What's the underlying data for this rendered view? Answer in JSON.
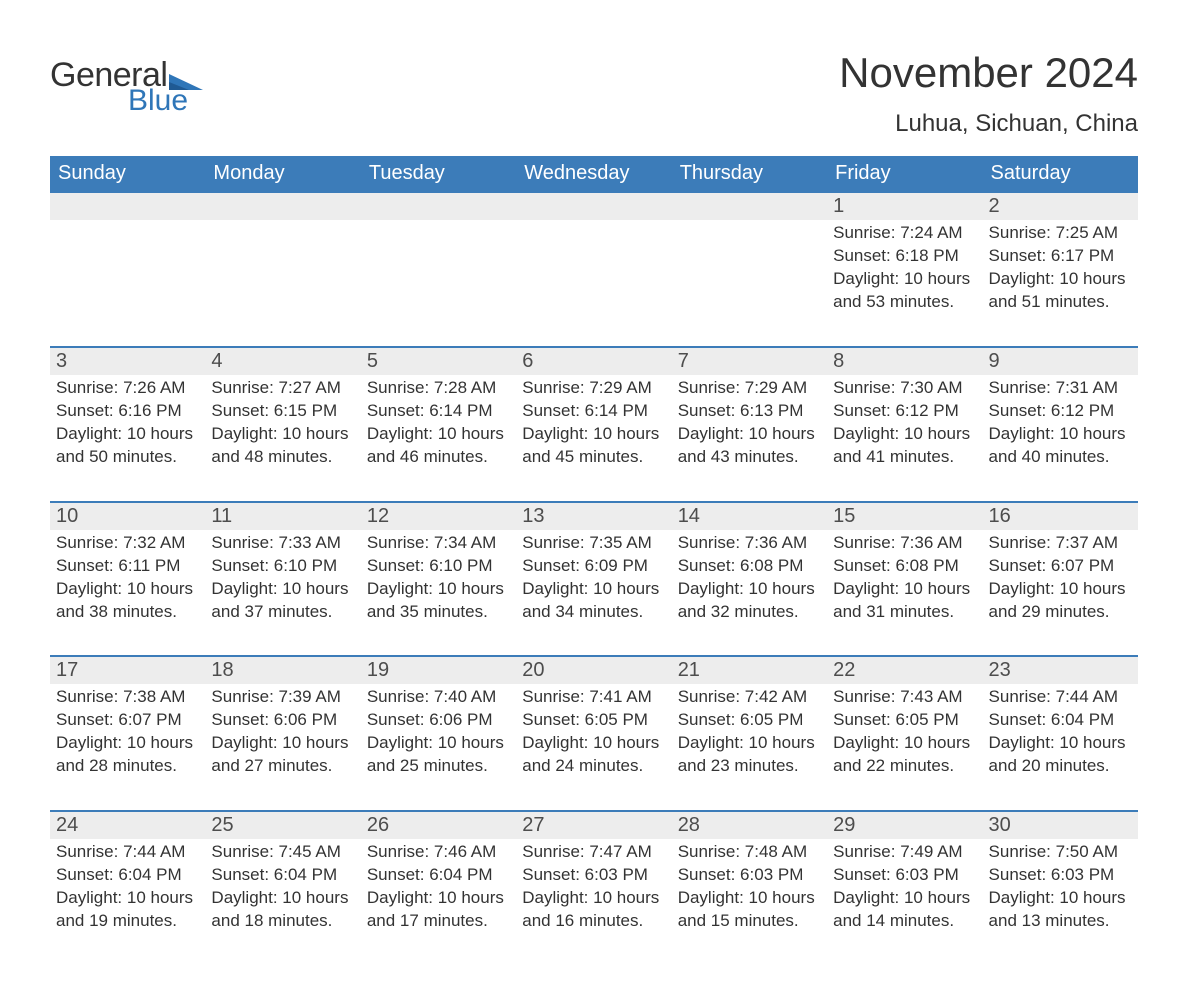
{
  "logo": {
    "general": "General",
    "blue": "Blue"
  },
  "title": "November 2024",
  "location": "Luhua, Sichuan, China",
  "day_names": [
    "Sunday",
    "Monday",
    "Tuesday",
    "Wednesday",
    "Thursday",
    "Friday",
    "Saturday"
  ],
  "colors": {
    "brand_blue": "#3c7cb9",
    "gray_band": "#ededed",
    "text": "#333333",
    "white": "#ffffff"
  },
  "fonts": {
    "title_size_pt": 32,
    "location_size_pt": 18,
    "header_size_pt": 15,
    "daynum_size_pt": 15,
    "body_size_pt": 13
  },
  "weeks": [
    [
      null,
      null,
      null,
      null,
      null,
      {
        "n": "1",
        "sunrise": "Sunrise: 7:24 AM",
        "sunset": "Sunset: 6:18 PM",
        "daylight": "Daylight: 10 hours and 53 minutes."
      },
      {
        "n": "2",
        "sunrise": "Sunrise: 7:25 AM",
        "sunset": "Sunset: 6:17 PM",
        "daylight": "Daylight: 10 hours and 51 minutes."
      }
    ],
    [
      {
        "n": "3",
        "sunrise": "Sunrise: 7:26 AM",
        "sunset": "Sunset: 6:16 PM",
        "daylight": "Daylight: 10 hours and 50 minutes."
      },
      {
        "n": "4",
        "sunrise": "Sunrise: 7:27 AM",
        "sunset": "Sunset: 6:15 PM",
        "daylight": "Daylight: 10 hours and 48 minutes."
      },
      {
        "n": "5",
        "sunrise": "Sunrise: 7:28 AM",
        "sunset": "Sunset: 6:14 PM",
        "daylight": "Daylight: 10 hours and 46 minutes."
      },
      {
        "n": "6",
        "sunrise": "Sunrise: 7:29 AM",
        "sunset": "Sunset: 6:14 PM",
        "daylight": "Daylight: 10 hours and 45 minutes."
      },
      {
        "n": "7",
        "sunrise": "Sunrise: 7:29 AM",
        "sunset": "Sunset: 6:13 PM",
        "daylight": "Daylight: 10 hours and 43 minutes."
      },
      {
        "n": "8",
        "sunrise": "Sunrise: 7:30 AM",
        "sunset": "Sunset: 6:12 PM",
        "daylight": "Daylight: 10 hours and 41 minutes."
      },
      {
        "n": "9",
        "sunrise": "Sunrise: 7:31 AM",
        "sunset": "Sunset: 6:12 PM",
        "daylight": "Daylight: 10 hours and 40 minutes."
      }
    ],
    [
      {
        "n": "10",
        "sunrise": "Sunrise: 7:32 AM",
        "sunset": "Sunset: 6:11 PM",
        "daylight": "Daylight: 10 hours and 38 minutes."
      },
      {
        "n": "11",
        "sunrise": "Sunrise: 7:33 AM",
        "sunset": "Sunset: 6:10 PM",
        "daylight": "Daylight: 10 hours and 37 minutes."
      },
      {
        "n": "12",
        "sunrise": "Sunrise: 7:34 AM",
        "sunset": "Sunset: 6:10 PM",
        "daylight": "Daylight: 10 hours and 35 minutes."
      },
      {
        "n": "13",
        "sunrise": "Sunrise: 7:35 AM",
        "sunset": "Sunset: 6:09 PM",
        "daylight": "Daylight: 10 hours and 34 minutes."
      },
      {
        "n": "14",
        "sunrise": "Sunrise: 7:36 AM",
        "sunset": "Sunset: 6:08 PM",
        "daylight": "Daylight: 10 hours and 32 minutes."
      },
      {
        "n": "15",
        "sunrise": "Sunrise: 7:36 AM",
        "sunset": "Sunset: 6:08 PM",
        "daylight": "Daylight: 10 hours and 31 minutes."
      },
      {
        "n": "16",
        "sunrise": "Sunrise: 7:37 AM",
        "sunset": "Sunset: 6:07 PM",
        "daylight": "Daylight: 10 hours and 29 minutes."
      }
    ],
    [
      {
        "n": "17",
        "sunrise": "Sunrise: 7:38 AM",
        "sunset": "Sunset: 6:07 PM",
        "daylight": "Daylight: 10 hours and 28 minutes."
      },
      {
        "n": "18",
        "sunrise": "Sunrise: 7:39 AM",
        "sunset": "Sunset: 6:06 PM",
        "daylight": "Daylight: 10 hours and 27 minutes."
      },
      {
        "n": "19",
        "sunrise": "Sunrise: 7:40 AM",
        "sunset": "Sunset: 6:06 PM",
        "daylight": "Daylight: 10 hours and 25 minutes."
      },
      {
        "n": "20",
        "sunrise": "Sunrise: 7:41 AM",
        "sunset": "Sunset: 6:05 PM",
        "daylight": "Daylight: 10 hours and 24 minutes."
      },
      {
        "n": "21",
        "sunrise": "Sunrise: 7:42 AM",
        "sunset": "Sunset: 6:05 PM",
        "daylight": "Daylight: 10 hours and 23 minutes."
      },
      {
        "n": "22",
        "sunrise": "Sunrise: 7:43 AM",
        "sunset": "Sunset: 6:05 PM",
        "daylight": "Daylight: 10 hours and 22 minutes."
      },
      {
        "n": "23",
        "sunrise": "Sunrise: 7:44 AM",
        "sunset": "Sunset: 6:04 PM",
        "daylight": "Daylight: 10 hours and 20 minutes."
      }
    ],
    [
      {
        "n": "24",
        "sunrise": "Sunrise: 7:44 AM",
        "sunset": "Sunset: 6:04 PM",
        "daylight": "Daylight: 10 hours and 19 minutes."
      },
      {
        "n": "25",
        "sunrise": "Sunrise: 7:45 AM",
        "sunset": "Sunset: 6:04 PM",
        "daylight": "Daylight: 10 hours and 18 minutes."
      },
      {
        "n": "26",
        "sunrise": "Sunrise: 7:46 AM",
        "sunset": "Sunset: 6:04 PM",
        "daylight": "Daylight: 10 hours and 17 minutes."
      },
      {
        "n": "27",
        "sunrise": "Sunrise: 7:47 AM",
        "sunset": "Sunset: 6:03 PM",
        "daylight": "Daylight: 10 hours and 16 minutes."
      },
      {
        "n": "28",
        "sunrise": "Sunrise: 7:48 AM",
        "sunset": "Sunset: 6:03 PM",
        "daylight": "Daylight: 10 hours and 15 minutes."
      },
      {
        "n": "29",
        "sunrise": "Sunrise: 7:49 AM",
        "sunset": "Sunset: 6:03 PM",
        "daylight": "Daylight: 10 hours and 14 minutes."
      },
      {
        "n": "30",
        "sunrise": "Sunrise: 7:50 AM",
        "sunset": "Sunset: 6:03 PM",
        "daylight": "Daylight: 10 hours and 13 minutes."
      }
    ]
  ]
}
